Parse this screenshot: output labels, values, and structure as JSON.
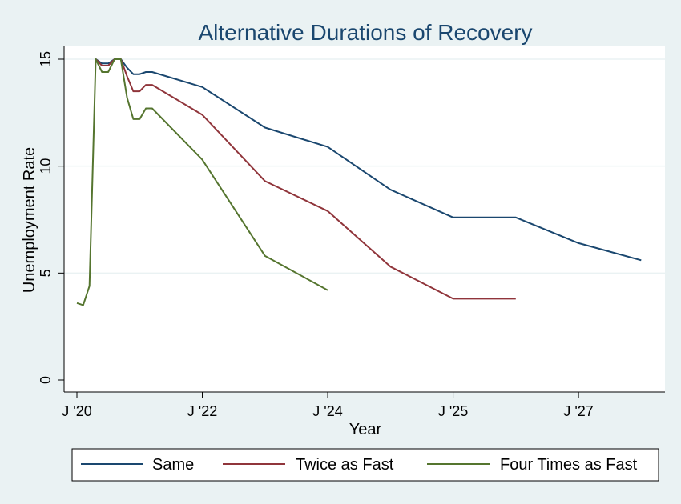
{
  "chart_data": {
    "type": "line",
    "title": "Alternative Durations of Recovery",
    "xlabel": "Year",
    "ylabel": "Unemployment Rate",
    "xlim": [
      0,
      92
    ],
    "ylim": [
      0,
      15
    ],
    "x_ticks": [
      {
        "x": 0,
        "label": "J '20"
      },
      {
        "x": 20,
        "label": "J '22"
      },
      {
        "x": 40,
        "label": "J '24"
      },
      {
        "x": 60,
        "label": "J '25"
      },
      {
        "x": 80,
        "label": "J '27"
      }
    ],
    "y_ticks": [
      0,
      5,
      10,
      15
    ],
    "grid": true,
    "legend_position": "bottom",
    "series": [
      {
        "name": "Same",
        "color": "#1a476f",
        "points": [
          [
            3,
            15.0
          ],
          [
            4,
            14.8
          ],
          [
            5,
            14.8
          ],
          [
            6,
            15.0
          ],
          [
            7,
            15.0
          ],
          [
            8,
            14.6
          ],
          [
            9,
            14.3
          ],
          [
            10,
            14.3
          ],
          [
            11,
            14.4
          ],
          [
            12,
            14.4
          ],
          [
            20,
            13.7
          ],
          [
            30,
            11.8
          ],
          [
            40,
            10.9
          ],
          [
            50,
            8.9
          ],
          [
            60,
            7.6
          ],
          [
            70,
            7.6
          ],
          [
            80,
            6.4
          ],
          [
            90,
            5.6
          ]
        ]
      },
      {
        "name": "Twice as Fast",
        "color": "#90353b",
        "points": [
          [
            3,
            15.0
          ],
          [
            4,
            14.7
          ],
          [
            5,
            14.7
          ],
          [
            6,
            15.0
          ],
          [
            7,
            15.0
          ],
          [
            8,
            14.2
          ],
          [
            9,
            13.5
          ],
          [
            10,
            13.5
          ],
          [
            11,
            13.8
          ],
          [
            12,
            13.8
          ],
          [
            20,
            12.4
          ],
          [
            30,
            9.3
          ],
          [
            40,
            7.9
          ],
          [
            50,
            5.3
          ],
          [
            60,
            3.8
          ],
          [
            70,
            3.8
          ]
        ]
      },
      {
        "name": "Four Times as Fast",
        "color": "#55752f",
        "points": [
          [
            0,
            3.6
          ],
          [
            1,
            3.5
          ],
          [
            2,
            4.4
          ],
          [
            3,
            15.0
          ],
          [
            4,
            14.4
          ],
          [
            5,
            14.4
          ],
          [
            6,
            15.0
          ],
          [
            7,
            15.0
          ],
          [
            8,
            13.2
          ],
          [
            9,
            12.2
          ],
          [
            10,
            12.2
          ],
          [
            11,
            12.7
          ],
          [
            12,
            12.7
          ],
          [
            20,
            10.3
          ],
          [
            30,
            5.8
          ],
          [
            40,
            4.2
          ]
        ]
      }
    ]
  }
}
